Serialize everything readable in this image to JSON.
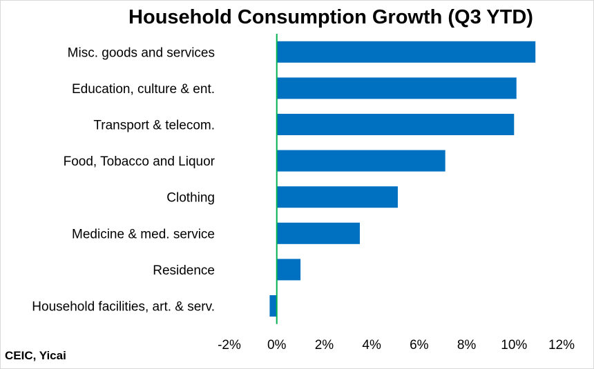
{
  "chart_data": {
    "type": "bar",
    "orientation": "horizontal",
    "title": "Household Consumption Growth (Q3 YTD)",
    "xlabel": "",
    "ylabel": "",
    "categories": [
      "Misc. goods and services",
      "Education, culture & ent.",
      "Transport & telecom.",
      "Food, Tobacco and Liquor",
      "Clothing",
      "Medicine & med. service",
      "Residence",
      "Household facilities, art. & serv."
    ],
    "values": [
      10.9,
      10.1,
      10.0,
      7.1,
      5.1,
      3.5,
      1.0,
      -0.3
    ],
    "xlim": [
      -2,
      12
    ],
    "xticks": [
      "-2%",
      "0%",
      "2%",
      "4%",
      "6%",
      "8%",
      "10%",
      "12%"
    ],
    "value_unit": "%",
    "grid": false,
    "legend": "none",
    "colors": {
      "bar": "#0070c0",
      "zero_line": "#00b050",
      "text": "#000000"
    }
  },
  "source": "CEIC, Yicai"
}
